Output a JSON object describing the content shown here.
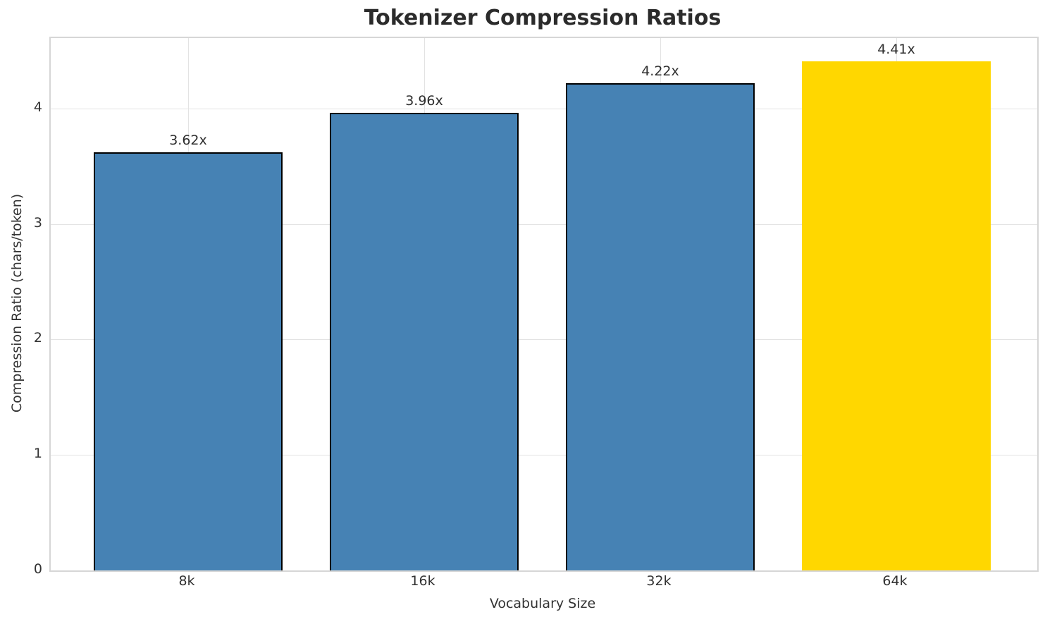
{
  "chart_data": {
    "type": "bar",
    "title": "Tokenizer Compression Ratios",
    "xlabel": "Vocabulary Size",
    "ylabel": "Compression Ratio (chars/token)",
    "categories": [
      "8k",
      "16k",
      "32k",
      "64k"
    ],
    "values": [
      3.62,
      3.96,
      4.22,
      4.41
    ],
    "bar_labels": [
      "3.62x",
      "3.96x",
      "4.22x",
      "4.41x"
    ],
    "bar_colors": [
      "#4682b4",
      "#4682b4",
      "#4682b4",
      "#ffd700"
    ],
    "bar_edge_colors": [
      "#000000",
      "#000000",
      "#000000",
      "none"
    ],
    "yticks": [
      0,
      1,
      2,
      3,
      4
    ],
    "ylim": [
      0,
      4.61
    ],
    "grid": true,
    "legend": "none",
    "colors": {
      "bar_default": "#4682b4",
      "bar_highlight": "#ffd700",
      "bar_edge": "#000000",
      "grid": "#e3e3e3",
      "spine": "#d6d6d6",
      "text": "#333333",
      "title_text": "#2b2b2b"
    }
  }
}
